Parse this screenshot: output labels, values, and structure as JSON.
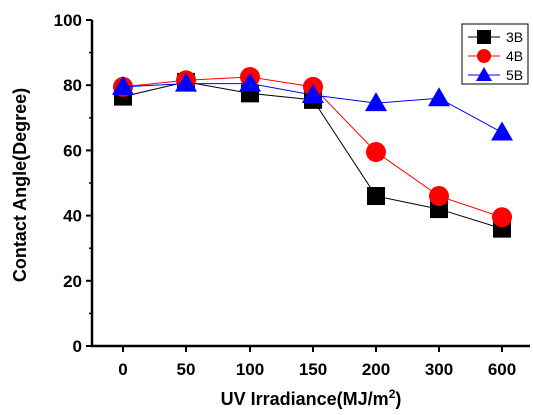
{
  "chart_data": {
    "type": "line",
    "categories": [
      "0",
      "50",
      "100",
      "150",
      "200",
      "300",
      "600"
    ],
    "series": [
      {
        "name": "3B",
        "marker": "square",
        "color": "#000000",
        "values": [
          76.5,
          81,
          77.5,
          75.5,
          46,
          42,
          36
        ]
      },
      {
        "name": "4B",
        "marker": "circle",
        "color": "#ff0000",
        "values": [
          79.5,
          81.5,
          82.5,
          79.5,
          59.5,
          46,
          39.5
        ]
      },
      {
        "name": "5B",
        "marker": "triangle",
        "color": "#0000ff",
        "values": [
          79.5,
          80.5,
          80.5,
          77,
          74.5,
          76,
          65.5
        ]
      }
    ],
    "xlabel": "UV Irradiance(MJ/m",
    "xlabel_superscript": "2",
    "xlabel_suffix": ")",
    "ylabel": "Contact Angle(Degree)",
    "ylim": [
      0,
      100
    ],
    "yticks": [
      "0",
      "20",
      "40",
      "60",
      "80",
      "100"
    ],
    "grid": false,
    "legend_position": "top-right"
  }
}
